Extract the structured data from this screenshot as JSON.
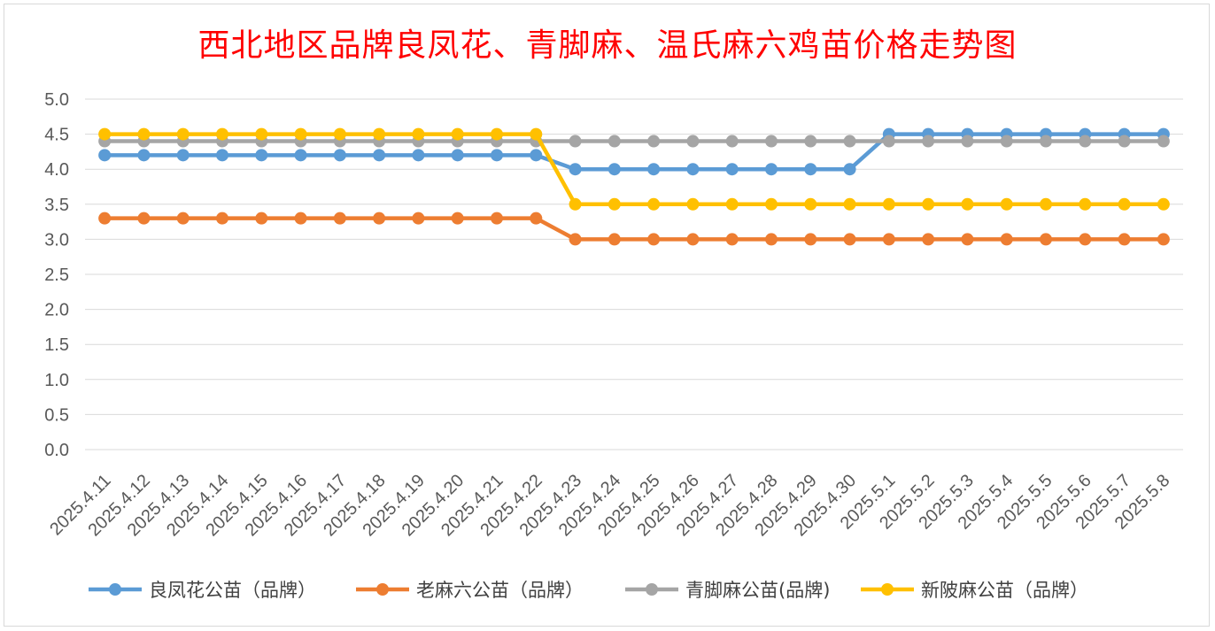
{
  "chart_data": {
    "type": "line",
    "title": "西北地区品牌良凤花、青脚麻、温氏麻六鸡苗价格走势图",
    "xlabel": "",
    "ylabel": "",
    "ylim": [
      0,
      5.0
    ],
    "yticks": [
      "0.0",
      "0.5",
      "1.0",
      "1.5",
      "2.0",
      "2.5",
      "3.0",
      "3.5",
      "4.0",
      "4.5",
      "5.0"
    ],
    "grid": true,
    "legend_position": "bottom",
    "categories": [
      "2025.4.11",
      "2025.4.12",
      "2025.4.13",
      "2025.4.14",
      "2025.4.15",
      "2025.4.16",
      "2025.4.17",
      "2025.4.18",
      "2025.4.19",
      "2025.4.20",
      "2025.4.21",
      "2025.4.22",
      "2025.4.23",
      "2025.4.24",
      "2025.4.25",
      "2025.4.26",
      "2025.4.27",
      "2025.4.28",
      "2025.4.29",
      "2025.4.30",
      "2025.5.1",
      "2025.5.2",
      "2025.5.3",
      "2025.5.4",
      "2025.5.5",
      "2025.5.6",
      "2025.5.7",
      "2025.5.8"
    ],
    "series": [
      {
        "name": "良凤花公苗（品牌）",
        "color": "#5b9bd5",
        "values": [
          4.2,
          4.2,
          4.2,
          4.2,
          4.2,
          4.2,
          4.2,
          4.2,
          4.2,
          4.2,
          4.2,
          4.2,
          4.0,
          4.0,
          4.0,
          4.0,
          4.0,
          4.0,
          4.0,
          4.0,
          4.5,
          4.5,
          4.5,
          4.5,
          4.5,
          4.5,
          4.5,
          4.5
        ]
      },
      {
        "name": "老麻六公苗（品牌）",
        "color": "#ed7d31",
        "values": [
          3.3,
          3.3,
          3.3,
          3.3,
          3.3,
          3.3,
          3.3,
          3.3,
          3.3,
          3.3,
          3.3,
          3.3,
          3.0,
          3.0,
          3.0,
          3.0,
          3.0,
          3.0,
          3.0,
          3.0,
          3.0,
          3.0,
          3.0,
          3.0,
          3.0,
          3.0,
          3.0,
          3.0
        ]
      },
      {
        "name": "青脚麻公苗(品牌)",
        "color": "#a5a5a5",
        "values": [
          4.4,
          4.4,
          4.4,
          4.4,
          4.4,
          4.4,
          4.4,
          4.4,
          4.4,
          4.4,
          4.4,
          4.4,
          4.4,
          4.4,
          4.4,
          4.4,
          4.4,
          4.4,
          4.4,
          4.4,
          4.4,
          4.4,
          4.4,
          4.4,
          4.4,
          4.4,
          4.4,
          4.4
        ]
      },
      {
        "name": "新陂麻公苗（品牌）",
        "color": "#ffc000",
        "values": [
          4.5,
          4.5,
          4.5,
          4.5,
          4.5,
          4.5,
          4.5,
          4.5,
          4.5,
          4.5,
          4.5,
          4.5,
          3.5,
          3.5,
          3.5,
          3.5,
          3.5,
          3.5,
          3.5,
          3.5,
          3.5,
          3.5,
          3.5,
          3.5,
          3.5,
          3.5,
          3.5,
          3.5
        ]
      }
    ]
  }
}
